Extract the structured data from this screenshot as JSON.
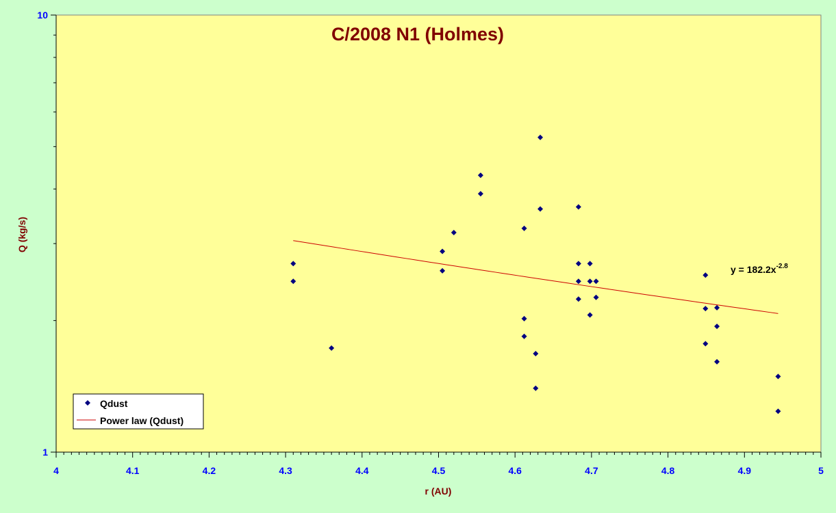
{
  "chart_data": {
    "type": "scatter",
    "title": "C/2008 N1 (Holmes)",
    "xlabel": "r (AU)",
    "ylabel": "Q (kg/s)",
    "x_scale": "linear",
    "y_scale": "log",
    "xlim": [
      4,
      5
    ],
    "ylim": [
      1,
      10
    ],
    "x_ticks": [
      "4",
      "4.1",
      "4.2",
      "4.3",
      "4.4",
      "4.5",
      "4.6",
      "4.7",
      "4.8",
      "4.9",
      "5"
    ],
    "y_ticks": [
      "1",
      "10"
    ],
    "grid": false,
    "legend_position": "bottom-left",
    "colors": {
      "page_background": "#ccffcc",
      "plot_background": "#ffff99",
      "title": "#800000",
      "axis_label": "#800000",
      "tick_label": "#0000ff",
      "marker": "#000080",
      "trendline": "#cc0000"
    },
    "series": [
      {
        "name": "Qdust",
        "marker": "diamond",
        "points": [
          {
            "x": 4.31,
            "y": 2.7
          },
          {
            "x": 4.31,
            "y": 2.46
          },
          {
            "x": 4.36,
            "y": 1.73
          },
          {
            "x": 4.505,
            "y": 2.88
          },
          {
            "x": 4.505,
            "y": 2.6
          },
          {
            "x": 4.52,
            "y": 3.18
          },
          {
            "x": 4.555,
            "y": 4.3
          },
          {
            "x": 4.555,
            "y": 3.9
          },
          {
            "x": 4.612,
            "y": 3.25
          },
          {
            "x": 4.612,
            "y": 2.02
          },
          {
            "x": 4.612,
            "y": 1.84
          },
          {
            "x": 4.627,
            "y": 1.68
          },
          {
            "x": 4.627,
            "y": 1.4
          },
          {
            "x": 4.633,
            "y": 5.25
          },
          {
            "x": 4.633,
            "y": 3.6
          },
          {
            "x": 4.683,
            "y": 3.64
          },
          {
            "x": 4.683,
            "y": 2.7
          },
          {
            "x": 4.683,
            "y": 2.46
          },
          {
            "x": 4.683,
            "y": 2.24
          },
          {
            "x": 4.698,
            "y": 2.7
          },
          {
            "x": 4.698,
            "y": 2.46
          },
          {
            "x": 4.698,
            "y": 2.06
          },
          {
            "x": 4.706,
            "y": 2.46
          },
          {
            "x": 4.706,
            "y": 2.26
          },
          {
            "x": 4.849,
            "y": 2.54
          },
          {
            "x": 4.849,
            "y": 2.13
          },
          {
            "x": 4.849,
            "y": 1.77
          },
          {
            "x": 4.864,
            "y": 2.14
          },
          {
            "x": 4.864,
            "y": 1.94
          },
          {
            "x": 4.864,
            "y": 1.61
          },
          {
            "x": 4.944,
            "y": 1.49
          },
          {
            "x": 4.944,
            "y": 1.24
          }
        ]
      },
      {
        "name": "Power law (Qdust)",
        "line": "solid",
        "fit": {
          "a": 182.2,
          "b": -2.8
        },
        "x_range": [
          4.31,
          4.944
        ]
      }
    ],
    "annotations": [
      {
        "equation_base": "y = 182.2x",
        "equation_exponent": "-2.8"
      }
    ]
  }
}
